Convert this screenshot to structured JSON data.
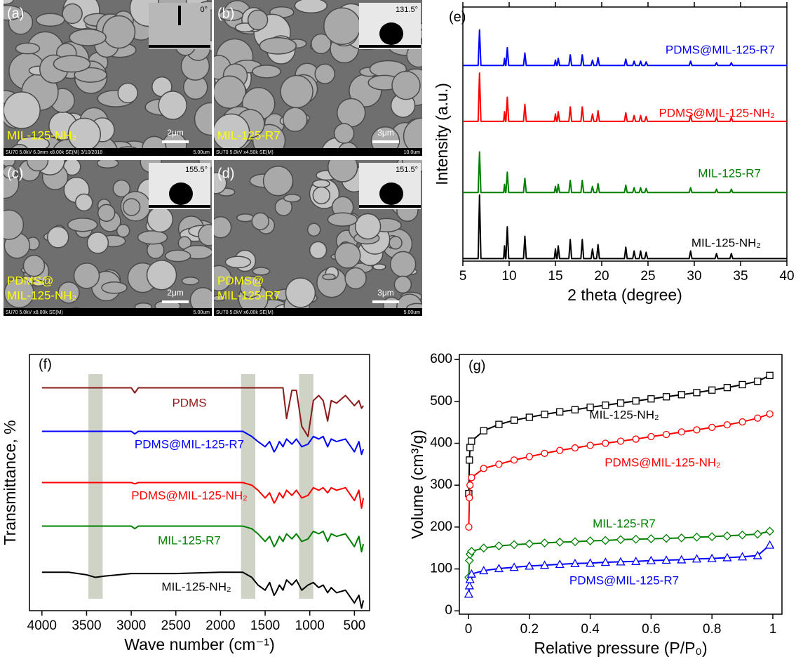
{
  "images": [
    {
      "label": "(a)",
      "sample": [
        "MIL-125-NH₂"
      ],
      "contact_angle": "0°",
      "scale_bar": "2μm",
      "footer": "SU70 5.0kV 6.3mm x8.00k SE(M) 3/10/2018",
      "footer_scale": "5.00um"
    },
    {
      "label": "(b)",
      "sample": [
        "MIL-125-R7"
      ],
      "contact_angle": "131.5°",
      "scale_bar": "3μm",
      "footer": "SU70 5.0kV x4.50k SE(M)",
      "footer_scale": "10.0um"
    },
    {
      "label": "(c)",
      "sample": [
        "PDMS@",
        "MIL-125-NH₂"
      ],
      "contact_angle": "155.5°",
      "scale_bar": "2μm",
      "footer": "SU70 5.0kV x8.00k SE(M)",
      "footer_scale": "5.00um"
    },
    {
      "label": "(d)",
      "sample": [
        "PDMS@",
        "MIL-125-R7"
      ],
      "contact_angle": "151.5°",
      "scale_bar": "3μm",
      "footer": "SU70 5.0kV x6.00k SE(M)",
      "footer_scale": "5.00um"
    }
  ],
  "chart_data": [
    {
      "type": "line",
      "panel_label": "(e)",
      "xlabel": "2 theta (degree)",
      "ylabel": "Intensity (a.u.)",
      "xlim": [
        5,
        40
      ],
      "xticks": [
        5,
        10,
        15,
        20,
        25,
        30,
        35,
        40
      ],
      "ylim": [
        0,
        100
      ],
      "mirror_ticks": true,
      "x": [
        5,
        6.65,
        6.8,
        6.95,
        9.4,
        9.5,
        9.6,
        9.65,
        9.8,
        9.95,
        11.55,
        11.7,
        11.85,
        14.88,
        15.0,
        15.12,
        15.18,
        15.3,
        15.45,
        16.45,
        16.6,
        16.75,
        17.75,
        17.9,
        18.05,
        18.85,
        19.0,
        19.15,
        19.45,
        19.6,
        19.75,
        22.45,
        22.6,
        22.75,
        23.35,
        23.5,
        23.65,
        24.05,
        24.2,
        24.35,
        24.65,
        24.8,
        24.95,
        29.45,
        29.6,
        29.75,
        32.25,
        32.4,
        32.55,
        33.85,
        34.0,
        34.15,
        40
      ],
      "series": [
        {
          "name": "PDMS@MIL-125-R7",
          "color": "#0000ff",
          "values": [
            77,
            77,
            91,
            77,
            77,
            79.8,
            77,
            77,
            84,
            77,
            77,
            81.9,
            77,
            77,
            79.1,
            77,
            77,
            79.8,
            77,
            77,
            81.2,
            77,
            77,
            81.2,
            77,
            77,
            79.1,
            77,
            77,
            80.1,
            77,
            77,
            79.5,
            77,
            77,
            78.7,
            77,
            77,
            78.7,
            77,
            77,
            78.4,
            77,
            77,
            78.7,
            77,
            77,
            78.1,
            77,
            77,
            78.1,
            77,
            77
          ]
        },
        {
          "name": "PDMS@MIL-125-NH₂",
          "color": "#ff0000",
          "values": [
            55,
            55,
            74,
            55,
            55,
            58.8,
            55,
            55,
            64.5,
            55,
            55,
            61.7,
            55,
            55,
            57.9,
            55,
            55,
            58.8,
            55,
            55,
            60.7,
            55,
            55,
            60.7,
            55,
            55,
            57.9,
            55,
            55,
            59.2,
            55,
            55,
            58.4,
            55,
            55,
            57.3,
            55,
            55,
            57.3,
            55,
            55,
            56.9,
            55,
            55,
            57.3,
            55,
            55,
            56.5,
            55,
            55,
            56.5,
            55,
            55
          ]
        },
        {
          "name": "MIL-125-R7",
          "color": "#008000",
          "values": [
            27,
            27,
            43,
            27,
            27,
            30.2,
            27,
            27,
            35,
            27,
            27,
            32.6,
            27,
            27,
            29.4,
            27,
            27,
            30.2,
            27,
            27,
            31.8,
            27,
            27,
            31.8,
            27,
            27,
            29.4,
            27,
            27,
            30.5,
            27,
            27,
            29.9,
            27,
            27,
            28.9,
            27,
            27,
            28.9,
            27,
            27,
            28.6,
            27,
            27,
            28.9,
            27,
            27,
            28.3,
            27,
            27,
            28.3,
            27,
            27
          ]
        },
        {
          "name": "MIL-125-NH₂",
          "color": "#000000",
          "values": [
            1,
            1,
            26,
            1,
            1,
            6,
            1,
            1,
            13.5,
            1,
            1,
            9.8,
            1,
            1,
            4.8,
            1,
            1,
            6,
            1,
            1,
            8.5,
            1,
            1,
            8.5,
            1,
            1,
            4.8,
            1,
            1,
            6.5,
            1,
            1,
            5.5,
            1,
            1,
            4,
            1,
            1,
            4,
            1,
            1,
            3.5,
            1,
            1,
            4,
            1,
            1,
            3,
            1,
            1,
            3,
            1,
            1
          ]
        }
      ]
    },
    {
      "type": "line",
      "panel_label": "(f)",
      "xlabel": "Wave number (cm⁻¹)",
      "ylabel": "Transmittance, %",
      "xlim": [
        4140,
        330
      ],
      "xticks": [
        4000,
        3500,
        3000,
        2500,
        2000,
        1500,
        1000,
        500
      ],
      "ylim": [
        0,
        100
      ],
      "highlight_bands": [
        [
          3480,
          3320
        ],
        [
          1770,
          1610
        ],
        [
          1120,
          960
        ]
      ],
      "x": [
        4000,
        3700,
        3500,
        3400,
        3300,
        3000,
        2960,
        2920,
        2500,
        2000,
        1750,
        1650,
        1580,
        1500,
        1450,
        1400,
        1380,
        1340,
        1300,
        1260,
        1200,
        1150,
        1090,
        1020,
        960,
        900,
        850,
        800,
        760,
        700,
        600,
        500,
        450,
        420,
        400
      ],
      "series": [
        {
          "name": "PDMS",
          "color": "#8b1a1a",
          "values": [
            87,
            87,
            87,
            87,
            87,
            87,
            85,
            87,
            87,
            87,
            87,
            87,
            87,
            87,
            87,
            87,
            87,
            87,
            87,
            75,
            86,
            86,
            72,
            68,
            82,
            84,
            82,
            74,
            82,
            81,
            84,
            80,
            82,
            79,
            80
          ]
        },
        {
          "name": "PDMS@MIL-125-R7",
          "color": "#0000ff",
          "values": [
            70,
            70,
            70,
            70,
            70,
            70,
            69,
            70,
            70,
            70,
            70,
            68,
            66,
            64,
            66,
            62,
            63,
            66,
            64,
            67,
            65,
            67,
            64,
            65,
            68,
            67,
            68,
            64,
            67,
            66,
            67,
            62,
            66,
            61,
            63
          ]
        },
        {
          "name": "PDMS@MIL-125-NH₂",
          "color": "#ff0000",
          "values": [
            50,
            50,
            50,
            50,
            50,
            50,
            49.5,
            50,
            50,
            50,
            50,
            49,
            47,
            44,
            46,
            42,
            43,
            46,
            44,
            47,
            45,
            47,
            44,
            45,
            48,
            47,
            48,
            46,
            48,
            47,
            48,
            43,
            47,
            40,
            44
          ]
        },
        {
          "name": "MIL-125-R7",
          "color": "#008000",
          "values": [
            33,
            33,
            33,
            33,
            33,
            33,
            32,
            33,
            33,
            33,
            33,
            32,
            30,
            27,
            29,
            25,
            26,
            29,
            27,
            30,
            28,
            30,
            27,
            28,
            31,
            30,
            31,
            27,
            30,
            29,
            30,
            25,
            29,
            23,
            26
          ]
        },
        {
          "name": "MIL-125-NH₂",
          "color": "#000000",
          "values": [
            15,
            15,
            14,
            13,
            13.5,
            14.5,
            14.5,
            14.5,
            14.5,
            15,
            15,
            13,
            10,
            8,
            11,
            6,
            7,
            10,
            8,
            12,
            10,
            12,
            8,
            10,
            11,
            9,
            10,
            7,
            9,
            7,
            8,
            3,
            6,
            1,
            4
          ]
        }
      ]
    },
    {
      "type": "line",
      "panel_label": "(g)",
      "xlabel": "Relative pressure (P/P₀)",
      "ylabel": "Volume (cm³/g)",
      "xlim": [
        -0.03,
        1.03
      ],
      "xticks": [
        0,
        0.2,
        0.4,
        0.6,
        0.8,
        1
      ],
      "ylim": [
        -8,
        612
      ],
      "yticks": [
        0,
        100,
        200,
        300,
        400,
        500,
        600
      ],
      "x": [
        0.001,
        0.003,
        0.005,
        0.01,
        0.05,
        0.1,
        0.15,
        0.2,
        0.25,
        0.3,
        0.35,
        0.4,
        0.45,
        0.5,
        0.55,
        0.6,
        0.65,
        0.7,
        0.75,
        0.8,
        0.85,
        0.9,
        0.95,
        0.99
      ],
      "series": [
        {
          "name": "MIL-125-NH₂",
          "color": "#000000",
          "marker": "square",
          "values": [
            280,
            360,
            390,
            405,
            430,
            445,
            455,
            462,
            469,
            475,
            480,
            486,
            491,
            496,
            501,
            506,
            511,
            516,
            521,
            527,
            533,
            540,
            548,
            562
          ]
        },
        {
          "name": "PDMS@MIL-125-NH₂",
          "color": "#ff0000",
          "marker": "circle",
          "values": [
            200,
            270,
            300,
            318,
            340,
            350,
            360,
            368,
            376,
            383,
            389,
            395,
            400,
            405,
            410,
            416,
            421,
            427,
            432,
            438,
            444,
            451,
            460,
            470
          ]
        },
        {
          "name": "MIL-125-R7",
          "color": "#008000",
          "marker": "diamond",
          "values": [
            80,
            120,
            135,
            142,
            150,
            155,
            158,
            160,
            162,
            164,
            165,
            167,
            168,
            170,
            171,
            172,
            173,
            174,
            176,
            177,
            179,
            181,
            183,
            190
          ]
        },
        {
          "name": "PDMS@MIL-125-R7",
          "color": "#0000ff",
          "marker": "triangle",
          "values": [
            40,
            60,
            75,
            88,
            96,
            101,
            104,
            107,
            109,
            111,
            113,
            114,
            116,
            117,
            118,
            120,
            121,
            122,
            124,
            125,
            127,
            129,
            132,
            157
          ]
        }
      ]
    }
  ]
}
